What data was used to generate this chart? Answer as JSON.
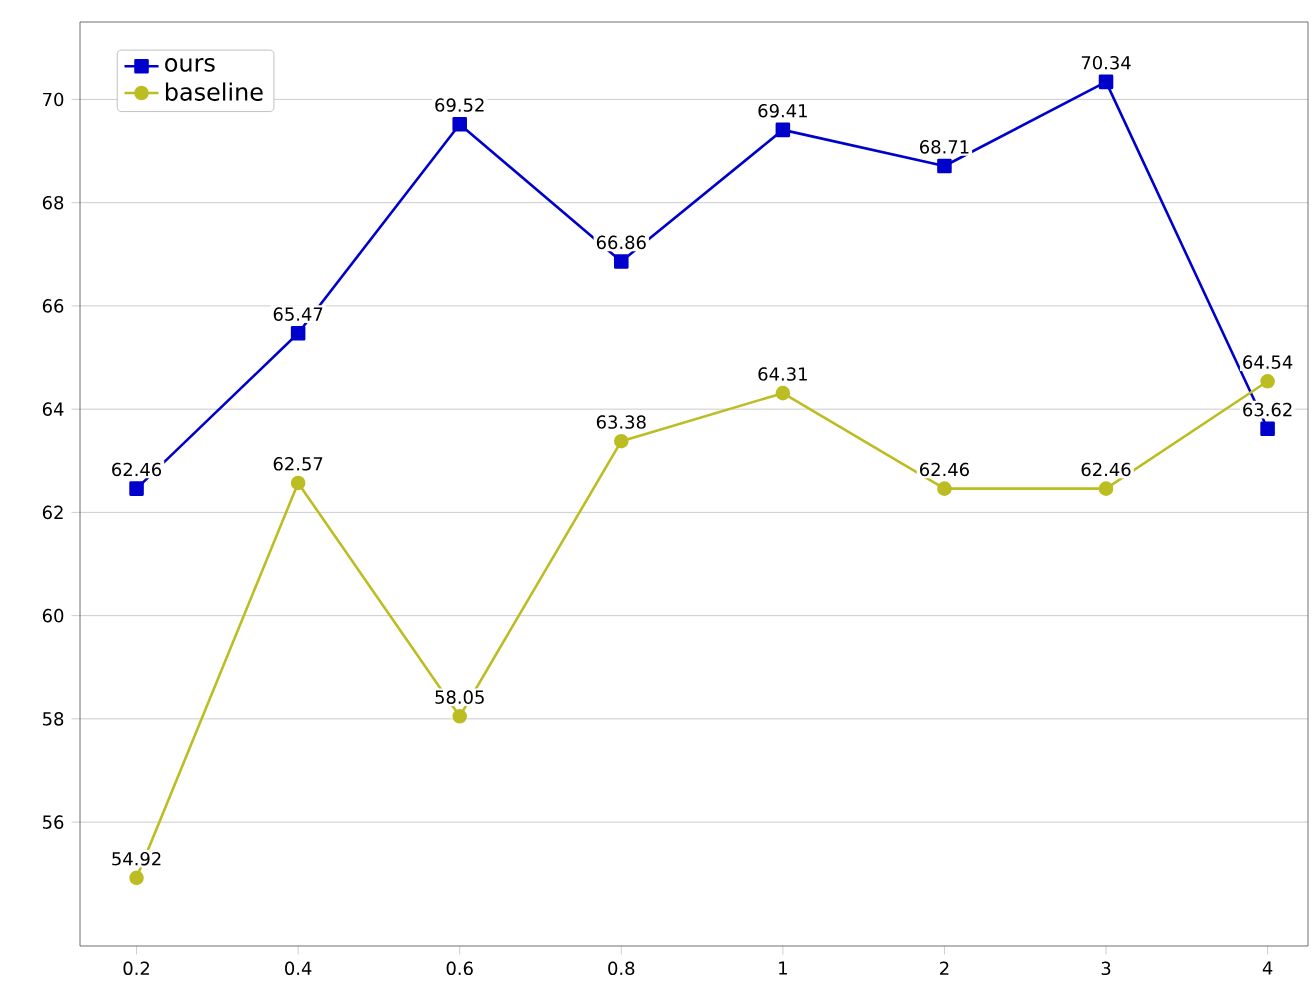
{
  "chart_data": {
    "type": "line",
    "categories": [
      "0.2",
      "0.4",
      "0.6",
      "0.8",
      "1",
      "2",
      "3",
      "4"
    ],
    "series": [
      {
        "name": "ours",
        "color": "#0000cc",
        "marker": "square",
        "values": [
          62.46,
          65.47,
          69.52,
          66.86,
          69.41,
          68.71,
          70.34,
          63.62
        ]
      },
      {
        "name": "baseline",
        "color": "#bcbd22",
        "marker": "circle",
        "values": [
          54.92,
          62.57,
          58.05,
          63.38,
          64.31,
          62.46,
          62.46,
          64.54
        ]
      }
    ],
    "ylim": [
      53.6,
      71.5
    ],
    "yticks": [
      56,
      58,
      60,
      62,
      64,
      66,
      68,
      70
    ],
    "grid": "y",
    "legend": "top left",
    "data_labels": true,
    "line_style": "solid"
  }
}
